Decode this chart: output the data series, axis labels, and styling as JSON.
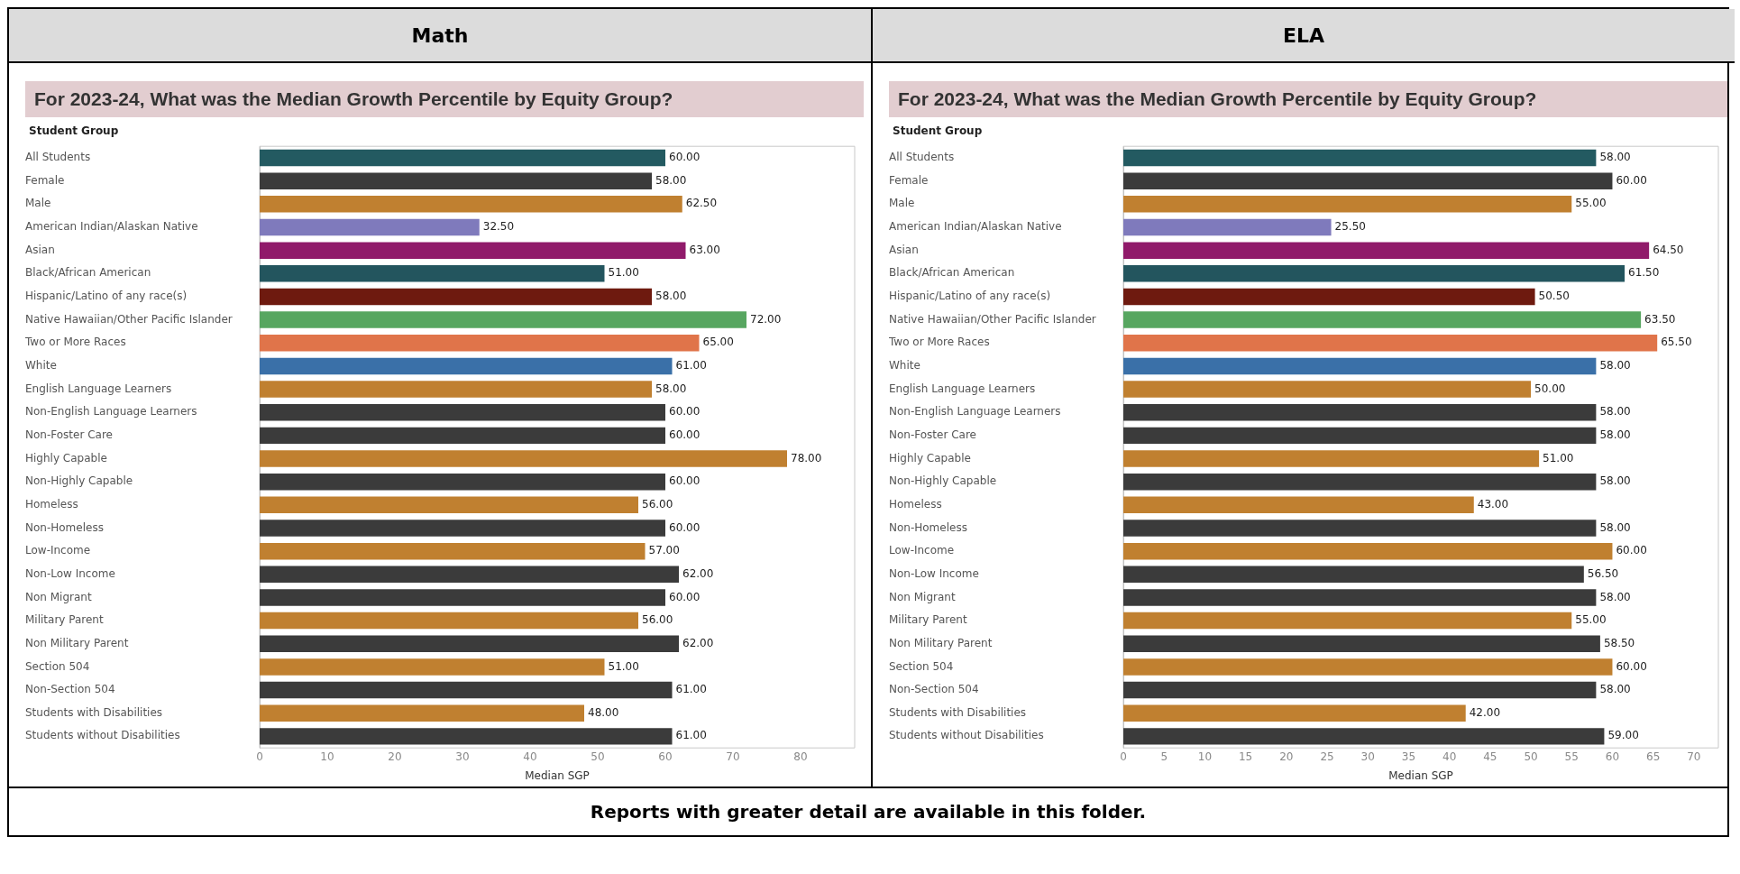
{
  "chart_data": [
    {
      "type": "bar",
      "orientation": "horizontal",
      "title": "Math",
      "subtitle": "For 2023-24, What was the Median Growth Percentile by Equity Group?",
      "ylabel": "Student Group",
      "xlabel": "Median SGP",
      "categories": [
        "All Students",
        "Female",
        "Male",
        "American Indian/Alaskan Native",
        "Asian",
        "Black/African American",
        "Hispanic/Latino of any race(s)",
        "Native Hawaiian/Other Pacific Islander",
        "Two or More Races",
        "White",
        "English Language Learners",
        "Non-English Language Learners",
        "Non-Foster Care",
        "Highly Capable",
        "Non-Highly Capable",
        "Homeless",
        "Non-Homeless",
        "Low-Income",
        "Non-Low Income",
        "Non Migrant",
        "Military Parent",
        "Non Military Parent",
        "Section 504",
        "Non-Section 504",
        "Students with Disabilities",
        "Students without Disabilities"
      ],
      "values": [
        60,
        58,
        62.5,
        32.5,
        63,
        51,
        58,
        72,
        65,
        61,
        58,
        60,
        60,
        78,
        60,
        56,
        60,
        57,
        62,
        60,
        56,
        62,
        51,
        61,
        48,
        61
      ],
      "value_labels": [
        "60.00",
        "58.00",
        "62.50",
        "32.50",
        "63.00",
        "51.00",
        "58.00",
        "72.00",
        "65.00",
        "61.00",
        "58.00",
        "60.00",
        "60.00",
        "78.00",
        "60.00",
        "56.00",
        "60.00",
        "57.00",
        "62.00",
        "60.00",
        "56.00",
        "62.00",
        "51.00",
        "61.00",
        "48.00",
        "61.00"
      ],
      "colors": [
        "#235a61",
        "#3b3b3b",
        "#c08030",
        "#7f7abc",
        "#901a6a",
        "#23555e",
        "#6e1a0f",
        "#57a660",
        "#e0744a",
        "#3a70a8",
        "#c08030",
        "#3b3b3b",
        "#3b3b3b",
        "#c08030",
        "#3b3b3b",
        "#c08030",
        "#3b3b3b",
        "#c08030",
        "#3b3b3b",
        "#3b3b3b",
        "#c08030",
        "#3b3b3b",
        "#c08030",
        "#3b3b3b",
        "#c08030",
        "#3b3b3b"
      ],
      "xlim": [
        0,
        88
      ],
      "xticks": [
        0,
        10,
        20,
        30,
        40,
        50,
        60,
        70,
        80
      ],
      "grid": false
    },
    {
      "type": "bar",
      "orientation": "horizontal",
      "title": "ELA",
      "subtitle": "For 2023-24, What was the Median Growth Percentile by Equity Group?",
      "ylabel": "Student Group",
      "xlabel": "Median SGP",
      "categories": [
        "All Students",
        "Female",
        "Male",
        "American Indian/Alaskan Native",
        "Asian",
        "Black/African American",
        "Hispanic/Latino of any race(s)",
        "Native Hawaiian/Other Pacific Islander",
        "Two or More Races",
        "White",
        "English Language Learners",
        "Non-English Language Learners",
        "Non-Foster Care",
        "Highly Capable",
        "Non-Highly Capable",
        "Homeless",
        "Non-Homeless",
        "Low-Income",
        "Non-Low Income",
        "Non Migrant",
        "Military Parent",
        "Non Military Parent",
        "Section 504",
        "Non-Section 504",
        "Students with Disabilities",
        "Students without Disabilities"
      ],
      "values": [
        58,
        60,
        55,
        25.5,
        64.5,
        61.5,
        50.5,
        63.5,
        65.5,
        58,
        50,
        58,
        58,
        51,
        58,
        43,
        58,
        60,
        56.5,
        58,
        55,
        58.5,
        60,
        58,
        42,
        59
      ],
      "value_labels": [
        "58.00",
        "60.00",
        "55.00",
        "25.50",
        "64.50",
        "61.50",
        "50.50",
        "63.50",
        "65.50",
        "58.00",
        "50.00",
        "58.00",
        "58.00",
        "51.00",
        "58.00",
        "43.00",
        "58.00",
        "60.00",
        "56.50",
        "58.00",
        "55.00",
        "58.50",
        "60.00",
        "58.00",
        "42.00",
        "59.00"
      ],
      "colors": [
        "#235a61",
        "#3b3b3b",
        "#c08030",
        "#7f7abc",
        "#901a6a",
        "#23555e",
        "#6e1a0f",
        "#57a660",
        "#e0744a",
        "#3a70a8",
        "#c08030",
        "#3b3b3b",
        "#3b3b3b",
        "#c08030",
        "#3b3b3b",
        "#c08030",
        "#3b3b3b",
        "#c08030",
        "#3b3b3b",
        "#3b3b3b",
        "#c08030",
        "#3b3b3b",
        "#c08030",
        "#3b3b3b",
        "#c08030",
        "#3b3b3b"
      ],
      "xlim": [
        0,
        73
      ],
      "xticks": [
        0,
        5,
        10,
        15,
        20,
        25,
        30,
        35,
        40,
        45,
        50,
        55,
        60,
        65,
        70
      ],
      "grid": false,
      "annotations": [
        "Reports with greater detail are available in this folder."
      ]
    }
  ]
}
